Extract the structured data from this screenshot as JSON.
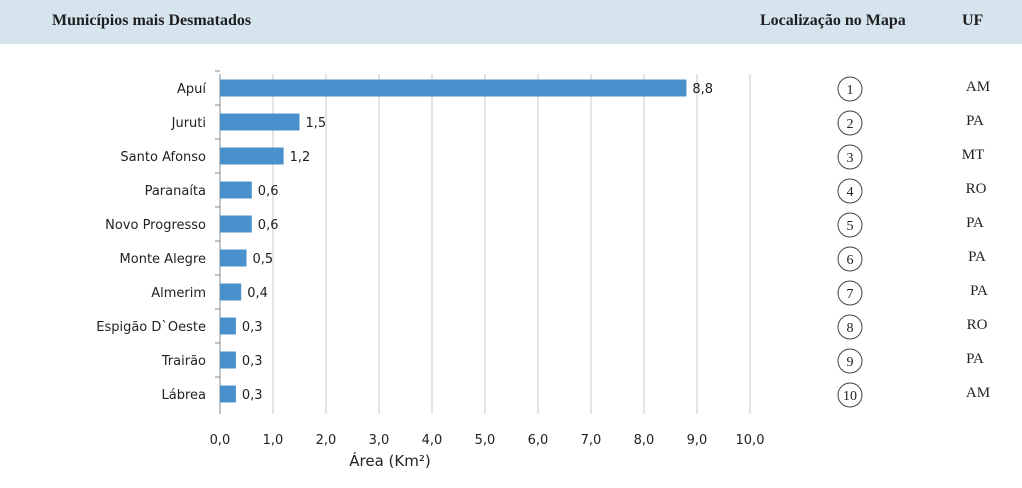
{
  "header": {
    "title": "Municípios mais Desmatados",
    "location_label": "Localização no Mapa",
    "uf_label": "UF"
  },
  "chart_data": {
    "type": "bar",
    "orientation": "horizontal",
    "categories": [
      "Apuí",
      "Juruti",
      "Santo Afonso",
      "Paranaíta",
      "Novo Progresso",
      "Monte Alegre",
      "Almerim",
      "Espigão D`Oeste",
      "Trairão",
      "Lábrea"
    ],
    "values": [
      8.8,
      1.5,
      1.2,
      0.6,
      0.6,
      0.5,
      0.4,
      0.3,
      0.3,
      0.3
    ],
    "value_labels": [
      "8,8",
      "1,5",
      "1,2",
      "0,6",
      "0,6",
      "0,5",
      "0,4",
      "0,3",
      "0,3",
      "0,3"
    ],
    "xlabel": "Área (Km²)",
    "xlim": [
      0,
      10
    ],
    "xticks": [
      "0,0",
      "1,0",
      "2,0",
      "3,0",
      "4,0",
      "5,0",
      "6,0",
      "7,0",
      "8,0",
      "9,0",
      "10,0"
    ],
    "grid": "vertical",
    "bar_color": "#4a90cc"
  },
  "map_locations": [
    "1",
    "2",
    "3",
    "4",
    "5",
    "6",
    "7",
    "8",
    "9",
    "10"
  ],
  "uf": [
    "AM",
    "PA",
    "MT",
    "RO",
    "PA",
    "PA",
    "PA",
    "RO",
    "PA",
    "AM"
  ]
}
